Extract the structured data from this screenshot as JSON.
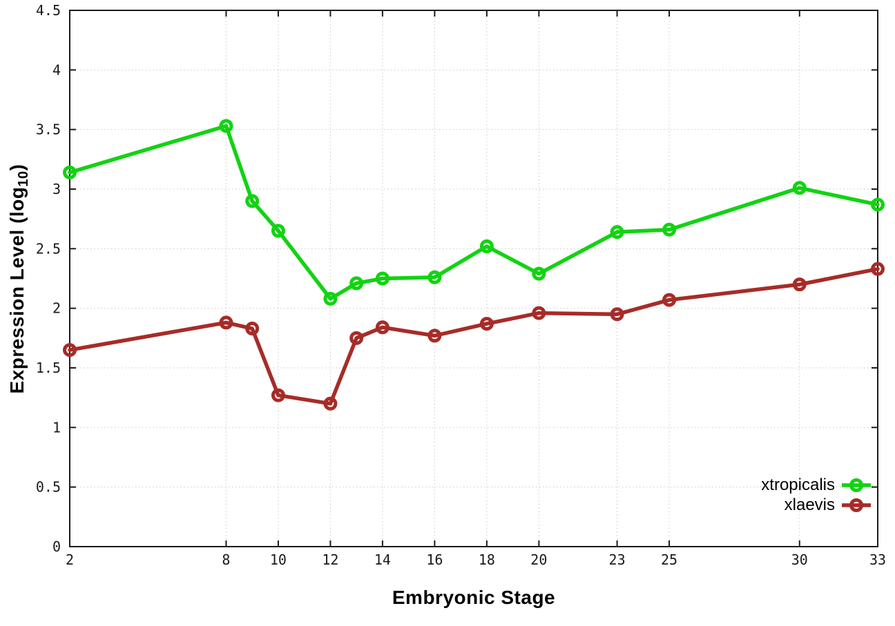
{
  "chart_data": {
    "type": "line",
    "title": "",
    "xlabel": "Embryonic Stage",
    "ylabel": {
      "main": "Expression Level (log",
      "sub": "10",
      "end": ")"
    },
    "xlim": [
      2,
      33
    ],
    "ylim": [
      0,
      4.5
    ],
    "x_ticks": [
      2,
      8,
      10,
      12,
      14,
      16,
      18,
      20,
      23,
      25,
      30,
      33
    ],
    "y_ticks": [
      0,
      0.5,
      1,
      1.5,
      2,
      2.5,
      3,
      3.5,
      4,
      4.5
    ],
    "y_tick_labels": [
      "0",
      "0.5",
      "1",
      "1.5",
      "2",
      "2.5",
      "3",
      "3.5",
      "4",
      "4.5"
    ],
    "grid": "dotted",
    "tics": "mirrored-inward",
    "legend_position": "inside bottom-right",
    "x": [
      2,
      8,
      9,
      10,
      12,
      13,
      14,
      16,
      18,
      20,
      23,
      25,
      30,
      33
    ],
    "series": [
      {
        "name": "xtropicalis",
        "color": "#12d312",
        "marker": "open-circle",
        "values": [
          3.14,
          3.53,
          2.9,
          2.65,
          2.08,
          2.21,
          2.25,
          2.26,
          2.52,
          2.29,
          2.64,
          2.66,
          3.01,
          2.87
        ]
      },
      {
        "name": "xlaevis",
        "color": "#a62c28",
        "marker": "open-circle",
        "values": [
          1.65,
          1.88,
          1.83,
          1.27,
          1.2,
          1.75,
          1.84,
          1.77,
          1.87,
          1.96,
          1.95,
          2.07,
          2.2,
          2.33
        ]
      }
    ],
    "axis_color": "#1a1a1a",
    "grid_color": "#c9c9c9",
    "tick_label_color": "#1a1a1a",
    "background": "#ffffff"
  }
}
